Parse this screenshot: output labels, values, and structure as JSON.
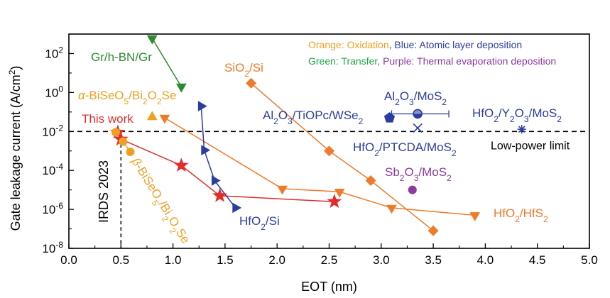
{
  "chart_data": {
    "type": "scatter",
    "y_scale": "log",
    "xlabel": "EOT (nm)",
    "ylabel_parts": {
      "base": "Gate leakage current (A/cm",
      "sup": "2",
      "close": ")"
    },
    "xlim": [
      0,
      5
    ],
    "ylim_exp": [
      -8,
      3
    ],
    "x_ticks": [
      "0.0",
      "0.5",
      "1.0",
      "1.5",
      "2.0",
      "2.5",
      "3.0",
      "3.5",
      "4.0",
      "4.5",
      "5.0"
    ],
    "x_tick_values": [
      0,
      0.5,
      1,
      1.5,
      2,
      2.5,
      3,
      3.5,
      4,
      4.5,
      5
    ],
    "y_ticks": [
      {
        "exp": -8,
        "base": "10",
        "power": "-8"
      },
      {
        "exp": -6,
        "base": "10",
        "power": "-6"
      },
      {
        "exp": -4,
        "base": "10",
        "power": "-4"
      },
      {
        "exp": -2,
        "base": "10",
        "power": "-2"
      },
      {
        "exp": 0,
        "base": "10",
        "power": "0"
      },
      {
        "exp": 2,
        "base": "10",
        "power": "2"
      }
    ],
    "colors": {
      "orange": "#F0A020",
      "dark_orange": "#EE7A2A",
      "blue": "#2B3DA0",
      "green": "#2E8B2E",
      "legend_green": "#1FA348",
      "red": "#E42C2C",
      "purple": "#8B3A9E",
      "black": "#000000"
    },
    "legend": [
      {
        "text": "Orange: Oxidation",
        "color": "#F0A020"
      },
      {
        "text": ", ",
        "color": "#2B3DA0"
      },
      {
        "text": "Blue: Atomic layer deposition",
        "color": "#2B3DA0"
      },
      {
        "text": "Green: Transfer",
        "color": "#1FA348"
      },
      {
        "text": ", ",
        "color": "#8B3A9E"
      },
      {
        "text": "Purple: Thermal evaporation deposition",
        "color": "#8B3A9E"
      }
    ],
    "low_power_limit": {
      "value": 0.01,
      "label": "Low-power limit"
    },
    "irds": {
      "x": 0.5,
      "label": "IRDS 2023"
    },
    "series": [
      {
        "name": "This work",
        "color": "#E42C2C",
        "marker": "star",
        "line": true,
        "x": [
          0.47,
          0.5,
          1.08,
          1.45,
          2.55
        ],
        "y": [
          0.009,
          0.004,
          0.00018,
          5e-06,
          2.5e-06
        ]
      },
      {
        "name": "SiO2/Si",
        "color": "#EE7A2A",
        "marker": "diamond",
        "line": true,
        "x": [
          1.75,
          2.5,
          2.9,
          3.5
        ],
        "y": [
          3.0,
          0.001,
          3e-05,
          8e-08
        ]
      },
      {
        "name": "HfO2/HfS2",
        "color": "#EE7A2A",
        "marker": "triangle-down",
        "line": true,
        "x": [
          0.92,
          2.05,
          2.6,
          3.1,
          3.9
        ],
        "y": [
          0.05,
          1.15e-05,
          8e-06,
          1.2e-06,
          5e-07
        ]
      },
      {
        "name": "α-BiSeO5/Bi2O2Se",
        "color": "#F0A020",
        "marker": "triangle-up",
        "line": false,
        "x": [
          0.8
        ],
        "y": [
          0.055
        ]
      },
      {
        "name": "β-BiSeO5/Bi2O2Se",
        "color": "#F0A020",
        "marker": "circle",
        "line": true,
        "x": [
          0.45,
          0.52,
          0.59
        ],
        "y": [
          0.009,
          0.003,
          0.0009
        ]
      },
      {
        "name": "HfO2/Si",
        "color": "#2B3DA0",
        "marker": "triangle-right",
        "line": true,
        "x": [
          1.27,
          1.3,
          1.4,
          1.6
        ],
        "y": [
          0.2,
          0.0011,
          3e-05,
          1.2e-06
        ]
      },
      {
        "name": "Gr/h-BN/Gr",
        "color": "#2E8B2E",
        "marker": "triangle-down",
        "line": true,
        "x": [
          0.8,
          1.08
        ],
        "y": [
          600,
          2
        ]
      },
      {
        "name": "Al2O3/TiOPc/WSe2",
        "color": "#2B3DA0",
        "marker": "pentagon",
        "line": false,
        "x": [
          3.08
        ],
        "y": [
          0.05
        ]
      },
      {
        "name": "Al2O3/MoS2",
        "color": "#2B3DA0",
        "marker": "half-circle",
        "line": false,
        "x": [
          3.35
        ],
        "y": [
          0.08
        ],
        "xerr": [
          0.25,
          0.3
        ]
      },
      {
        "name": "HfO2/PTCDA/MoS2",
        "color": "#2B3DA0",
        "marker": "x",
        "line": false,
        "x": [
          3.35
        ],
        "y": [
          0.015
        ]
      },
      {
        "name": "HfO2/Y2O3/MoS2",
        "color": "#2B3DA0",
        "marker": "asterisk",
        "line": false,
        "x": [
          4.35
        ],
        "y": [
          0.013
        ]
      },
      {
        "name": "Sb2O3/MoS2",
        "color": "#8B3A9E",
        "marker": "circle",
        "line": false,
        "x": [
          3.3
        ],
        "y": [
          1e-05
        ]
      }
    ],
    "annotations": [
      {
        "id": "gr",
        "color": "#2E8B2E",
        "parts": [
          {
            "t": "Gr/h-BN/Gr"
          }
        ]
      },
      {
        "id": "sio2",
        "color": "#EE7A2A",
        "parts": [
          {
            "t": "SiO"
          },
          {
            "t": "2",
            "s": "sub"
          },
          {
            "t": "/Si"
          }
        ]
      },
      {
        "id": "alpha",
        "color": "#F0A020",
        "parts": [
          {
            "t": "α",
            "i": true
          },
          {
            "t": "-BiSeO"
          },
          {
            "t": "5",
            "s": "sub"
          },
          {
            "t": "/Bi"
          },
          {
            "t": "2",
            "s": "sub"
          },
          {
            "t": "O"
          },
          {
            "t": "2",
            "s": "sub"
          },
          {
            "t": "Se"
          }
        ]
      },
      {
        "id": "thiswork",
        "color": "#E42C2C",
        "parts": [
          {
            "t": "This work"
          }
        ]
      },
      {
        "id": "al2o3mos2",
        "color": "#2B3DA0",
        "parts": [
          {
            "t": "Al"
          },
          {
            "t": "2",
            "s": "sub"
          },
          {
            "t": "O"
          },
          {
            "t": "3",
            "s": "sub"
          },
          {
            "t": "/MoS"
          },
          {
            "t": "2",
            "s": "sub"
          }
        ]
      },
      {
        "id": "tiopc",
        "color": "#2B3DA0",
        "parts": [
          {
            "t": "Al"
          },
          {
            "t": "2",
            "s": "sub"
          },
          {
            "t": "O"
          },
          {
            "t": "3",
            "s": "sub"
          },
          {
            "t": "/TiOPc/WSe"
          },
          {
            "t": "2",
            "s": "sub"
          }
        ]
      },
      {
        "id": "y2o3",
        "color": "#2B3DA0",
        "parts": [
          {
            "t": "HfO"
          },
          {
            "t": "2",
            "s": "sub"
          },
          {
            "t": "/Y"
          },
          {
            "t": "2",
            "s": "sub"
          },
          {
            "t": "O"
          },
          {
            "t": "3",
            "s": "sub"
          },
          {
            "t": "/MoS"
          },
          {
            "t": "2",
            "s": "sub"
          }
        ]
      },
      {
        "id": "ptcda",
        "color": "#2B3DA0",
        "parts": [
          {
            "t": "HfO"
          },
          {
            "t": "2",
            "s": "sub"
          },
          {
            "t": "/PTCDA/MoS"
          },
          {
            "t": "2",
            "s": "sub"
          }
        ]
      },
      {
        "id": "sb2o3",
        "color": "#8B3A9E",
        "parts": [
          {
            "t": "Sb"
          },
          {
            "t": "2",
            "s": "sub"
          },
          {
            "t": "O"
          },
          {
            "t": "3",
            "s": "sub"
          },
          {
            "t": "/MoS"
          },
          {
            "t": "2",
            "s": "sub"
          }
        ]
      },
      {
        "id": "hfo2si",
        "color": "#2B3DA0",
        "parts": [
          {
            "t": "HfO"
          },
          {
            "t": "2",
            "s": "sub"
          },
          {
            "t": "/Si"
          }
        ]
      },
      {
        "id": "hfs2",
        "color": "#EE7A2A",
        "parts": [
          {
            "t": "HfO"
          },
          {
            "t": "2",
            "s": "sub"
          },
          {
            "t": "/HfS"
          },
          {
            "t": "2",
            "s": "sub"
          }
        ]
      },
      {
        "id": "beta",
        "color": "#F0A020",
        "parts": [
          {
            "t": "β",
            "i": true
          },
          {
            "t": "-BiSeO"
          },
          {
            "t": "5",
            "s": "sub"
          },
          {
            "t": "/Bi"
          },
          {
            "t": "2",
            "s": "sub"
          },
          {
            "t": "O"
          },
          {
            "t": "2",
            "s": "sub"
          },
          {
            "t": "Se"
          }
        ]
      }
    ]
  }
}
